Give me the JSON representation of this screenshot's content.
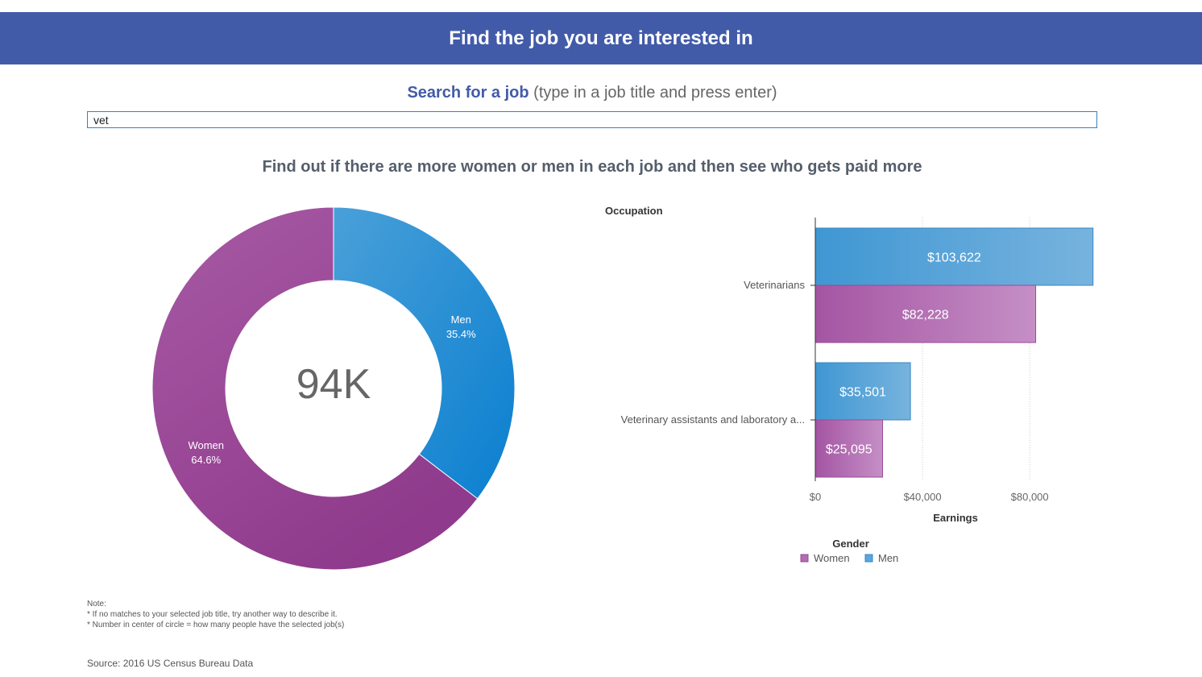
{
  "header": {
    "title": "Find the job you are interested in"
  },
  "search": {
    "label_strong": "Search for a job",
    "label_hint": "(type in a job title and press enter)",
    "value": "vet"
  },
  "subtitle": "Find out if there are more women or men in each job and then see who gets paid more",
  "colors": {
    "women": "#a24f9c",
    "men": "#3a8fd2",
    "banner": "#425ba9"
  },
  "chart_data": [
    {
      "type": "pie",
      "variant": "donut",
      "center_label": "94K",
      "slices": [
        {
          "label": "Men",
          "value": 35.4,
          "display": "35.4%"
        },
        {
          "label": "Women",
          "value": 64.6,
          "display": "64.6%"
        }
      ]
    },
    {
      "type": "bar",
      "orientation": "horizontal",
      "ylabel": "Occupation",
      "xlabel": "Earnings",
      "categories": [
        "Veterinarians",
        "Veterinary assistants and laboratory a..."
      ],
      "series": [
        {
          "name": "Men",
          "values": [
            103622,
            35501
          ],
          "labels": [
            "$103,622",
            "$35,501"
          ]
        },
        {
          "name": "Women",
          "values": [
            82228,
            25095
          ],
          "labels": [
            "$82,228",
            "$25,095"
          ]
        }
      ],
      "xticks": [
        0,
        40000,
        80000
      ],
      "xtick_labels": [
        "$0",
        "$40,000",
        "$80,000"
      ],
      "xlim": [
        0,
        104000
      ],
      "grid": true,
      "legend": {
        "title": "Gender",
        "position": "bottom",
        "items": [
          {
            "name": "Women"
          },
          {
            "name": "Men"
          }
        ]
      }
    }
  ],
  "notes": {
    "title": "Note:",
    "lines": [
      "* If no matches to your selected job title, try another way to describe it.",
      "* Number in center of circle = how many people have the selected job(s)"
    ]
  },
  "source": "Source: 2016 US Census Bureau Data"
}
